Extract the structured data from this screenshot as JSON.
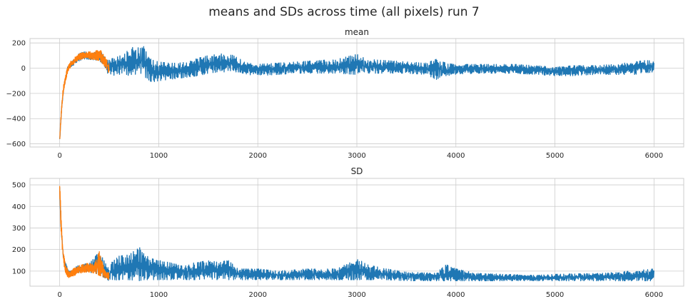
{
  "figure": {
    "suptitle": "means and SDs across time (all pixels) run 7"
  },
  "chart_data": [
    {
      "type": "line",
      "title": "mean",
      "xlabel": "",
      "ylabel": "",
      "xlim": [
        -300,
        6300
      ],
      "ylim": [
        -625,
        235
      ],
      "xticks": [
        0,
        1000,
        2000,
        3000,
        4000,
        5000,
        6000
      ],
      "yticks": [
        -600,
        -400,
        -200,
        0,
        200
      ],
      "grid": true,
      "colors": [
        "#1f77b4",
        "#ff7f0e"
      ],
      "series": [
        {
          "x_range": [
            0,
            6000
          ],
          "envelope": [
            [
              0,
              -570,
              -560
            ],
            [
              5,
              -520,
              -500
            ],
            [
              10,
              -450,
              -420
            ],
            [
              20,
              -330,
              -300
            ],
            [
              40,
              -180,
              -140
            ],
            [
              60,
              -90,
              -50
            ],
            [
              80,
              -30,
              10
            ],
            [
              100,
              0,
              40
            ],
            [
              150,
              30,
              80
            ],
            [
              200,
              60,
              120
            ],
            [
              250,
              70,
              130
            ],
            [
              300,
              70,
              125
            ],
            [
              350,
              65,
              120
            ],
            [
              400,
              60,
              140
            ],
            [
              450,
              20,
              100
            ],
            [
              480,
              -40,
              60
            ],
            [
              500,
              -40,
              70
            ],
            [
              550,
              -60,
              80
            ],
            [
              600,
              -50,
              95
            ],
            [
              650,
              -40,
              110
            ],
            [
              700,
              -60,
              150
            ],
            [
              750,
              -40,
              170
            ],
            [
              800,
              -70,
              200
            ],
            [
              850,
              -60,
              170
            ],
            [
              900,
              -100,
              80
            ],
            [
              950,
              -110,
              60
            ],
            [
              1000,
              -100,
              50
            ],
            [
              1100,
              -90,
              40
            ],
            [
              1200,
              -80,
              40
            ],
            [
              1300,
              -70,
              50
            ],
            [
              1400,
              -60,
              80
            ],
            [
              1500,
              -40,
              100
            ],
            [
              1600,
              -30,
              110
            ],
            [
              1700,
              -30,
              120
            ],
            [
              1800,
              -30,
              80
            ],
            [
              1900,
              -50,
              40
            ],
            [
              2000,
              -60,
              30
            ],
            [
              2200,
              -50,
              40
            ],
            [
              2400,
              -40,
              50
            ],
            [
              2600,
              -40,
              60
            ],
            [
              2800,
              -40,
              70
            ],
            [
              3000,
              -50,
              110
            ],
            [
              3100,
              -40,
              70
            ],
            [
              3300,
              -40,
              60
            ],
            [
              3500,
              -40,
              50
            ],
            [
              3700,
              -50,
              40
            ],
            [
              3800,
              -90,
              70
            ],
            [
              3900,
              -60,
              40
            ],
            [
              4000,
              -50,
              30
            ],
            [
              4200,
              -40,
              30
            ],
            [
              4400,
              -40,
              30
            ],
            [
              4600,
              -40,
              30
            ],
            [
              4800,
              -50,
              20
            ],
            [
              5000,
              -60,
              10
            ],
            [
              5200,
              -60,
              20
            ],
            [
              5400,
              -50,
              20
            ],
            [
              5600,
              -50,
              30
            ],
            [
              5800,
              -50,
              50
            ],
            [
              5900,
              -40,
              60
            ],
            [
              6000,
              -30,
              60
            ]
          ]
        },
        {
          "x_range": [
            0,
            500
          ],
          "envelope": [
            [
              0,
              -590,
              -560
            ],
            [
              5,
              -530,
              -480
            ],
            [
              10,
              -460,
              -400
            ],
            [
              20,
              -340,
              -280
            ],
            [
              30,
              -250,
              -190
            ],
            [
              40,
              -190,
              -130
            ],
            [
              50,
              -140,
              -90
            ],
            [
              60,
              -100,
              -50
            ],
            [
              70,
              -70,
              -20
            ],
            [
              80,
              -40,
              10
            ],
            [
              90,
              -20,
              25
            ],
            [
              100,
              -5,
              40
            ],
            [
              120,
              15,
              65
            ],
            [
              150,
              35,
              85
            ],
            [
              200,
              60,
              115
            ],
            [
              250,
              75,
              135
            ],
            [
              300,
              70,
              130
            ],
            [
              350,
              70,
              125
            ],
            [
              400,
              60,
              160
            ],
            [
              430,
              40,
              120
            ],
            [
              460,
              10,
              90
            ],
            [
              480,
              -20,
              60
            ],
            [
              500,
              -40,
              30
            ]
          ]
        }
      ]
    },
    {
      "type": "line",
      "title": "SD",
      "xlabel": "",
      "ylabel": "",
      "xlim": [
        -300,
        6300
      ],
      "ylim": [
        30,
        530
      ],
      "xticks": [
        0,
        1000,
        2000,
        3000,
        4000,
        5000,
        6000
      ],
      "yticks": [
        100,
        200,
        300,
        400,
        500
      ],
      "grid": true,
      "colors": [
        "#1f77b4",
        "#ff7f0e"
      ],
      "series": [
        {
          "x_range": [
            0,
            6000
          ],
          "envelope": [
            [
              0,
              480,
              500
            ],
            [
              10,
              300,
              350
            ],
            [
              30,
              180,
              210
            ],
            [
              60,
              100,
              140
            ],
            [
              100,
              75,
              100
            ],
            [
              200,
              95,
              130
            ],
            [
              300,
              95,
              135
            ],
            [
              400,
              85,
              190
            ],
            [
              480,
              60,
              120
            ],
            [
              500,
              55,
              130
            ],
            [
              600,
              60,
              170
            ],
            [
              700,
              60,
              175
            ],
            [
              800,
              55,
              210
            ],
            [
              850,
              60,
              200
            ],
            [
              900,
              60,
              160
            ],
            [
              1000,
              60,
              150
            ],
            [
              1200,
              60,
              130
            ],
            [
              1400,
              60,
              140
            ],
            [
              1500,
              60,
              150
            ],
            [
              1600,
              60,
              140
            ],
            [
              1700,
              60,
              150
            ],
            [
              1800,
              60,
              110
            ],
            [
              2000,
              60,
              110
            ],
            [
              2200,
              60,
              100
            ],
            [
              2500,
              60,
              110
            ],
            [
              2800,
              60,
              110
            ],
            [
              3000,
              60,
              160
            ],
            [
              3100,
              60,
              130
            ],
            [
              3300,
              60,
              110
            ],
            [
              3500,
              55,
              95
            ],
            [
              3800,
              55,
              90
            ],
            [
              3900,
              55,
              130
            ],
            [
              4000,
              55,
              110
            ],
            [
              4200,
              55,
              90
            ],
            [
              4500,
              55,
              85
            ],
            [
              4800,
              55,
              80
            ],
            [
              5000,
              55,
              85
            ],
            [
              5500,
              55,
              90
            ],
            [
              6000,
              55,
              110
            ]
          ]
        },
        {
          "x_range": [
            0,
            500
          ],
          "envelope": [
            [
              0,
              470,
              510
            ],
            [
              5,
              380,
              480
            ],
            [
              10,
              320,
              400
            ],
            [
              20,
              230,
              300
            ],
            [
              30,
              180,
              230
            ],
            [
              40,
              140,
              195
            ],
            [
              50,
              100,
              160
            ],
            [
              60,
              85,
              130
            ],
            [
              80,
              70,
              110
            ],
            [
              100,
              70,
              95
            ],
            [
              150,
              80,
              115
            ],
            [
              200,
              90,
              125
            ],
            [
              250,
              95,
              135
            ],
            [
              300,
              95,
              135
            ],
            [
              350,
              90,
              130
            ],
            [
              400,
              80,
              190
            ],
            [
              430,
              75,
              140
            ],
            [
              460,
              65,
              100
            ],
            [
              500,
              60,
              90
            ]
          ]
        }
      ]
    }
  ]
}
